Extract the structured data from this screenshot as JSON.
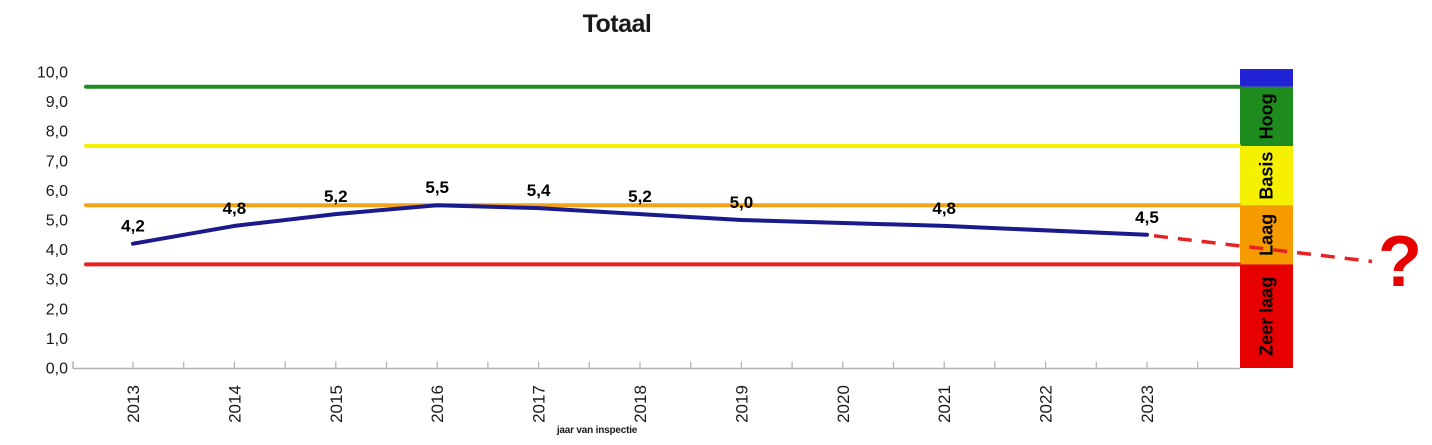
{
  "chart_data": {
    "type": "line",
    "title": "Totaal",
    "xlabel": "jaar van inspectie",
    "ylabel": "",
    "x": [
      "2013",
      "2014",
      "2015",
      "2016",
      "2017",
      "2018",
      "2019",
      "2020",
      "2021",
      "2022",
      "2023"
    ],
    "series": [
      {
        "name": "Totaal",
        "color": "#1a1a8c",
        "values": [
          4.2,
          4.8,
          5.2,
          5.5,
          5.4,
          5.2,
          5.0,
          null,
          4.8,
          null,
          4.5
        ]
      }
    ],
    "point_labels": [
      "4,2",
      "4,8",
      "5,2",
      "5,5",
      "5,4",
      "5,2",
      "5,0",
      null,
      "4,8",
      null,
      "4,5"
    ],
    "ylim": [
      0,
      10
    ],
    "y_ticks": [
      "0,0",
      "1,0",
      "2,0",
      "3,0",
      "4,0",
      "5,0",
      "6,0",
      "7,0",
      "8,0",
      "9,0",
      "10,0"
    ],
    "grid": false,
    "legend_position": "right-band",
    "reference_lines": [
      {
        "value": 9.5,
        "color": "#1e8c1e"
      },
      {
        "value": 7.5,
        "color": "#f5f000"
      },
      {
        "value": 5.5,
        "color": "#f4a318"
      },
      {
        "value": 3.5,
        "color": "#e82222"
      }
    ],
    "zones": [
      {
        "label": "",
        "color": "#2121d6",
        "from": 9.5,
        "to": 10.1
      },
      {
        "label": "Hoog",
        "color": "#1e8c1e",
        "from": 7.5,
        "to": 9.5
      },
      {
        "label": "Basis",
        "color": "#f5f000",
        "from": 5.5,
        "to": 7.5
      },
      {
        "label": "Laag",
        "color": "#f59b00",
        "from": 3.5,
        "to": 5.5
      },
      {
        "label": "Zeer laag",
        "color": "#e60000",
        "from": 0,
        "to": 3.5
      }
    ],
    "projection": {
      "style": "dashed",
      "color": "#e62222",
      "from_x": "2023",
      "from_value": 4.5,
      "end_value": 3.6,
      "label": "?"
    }
  }
}
